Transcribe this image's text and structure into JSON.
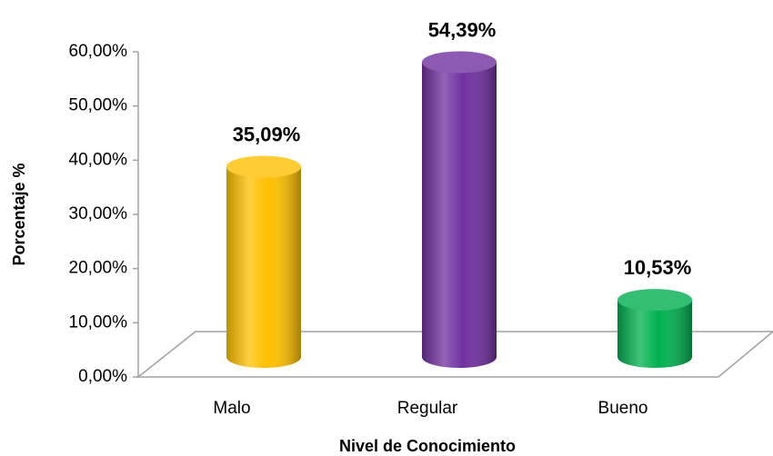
{
  "chart_data": {
    "type": "bar3d",
    "x_label": "Nivel de Conocimiento",
    "y_label": "Porcentaje %",
    "categories": [
      "Malo",
      "Regular",
      "Bueno"
    ],
    "values": [
      35.09,
      54.39,
      10.53
    ],
    "value_labels": [
      "35,09%",
      "54,39%",
      "10,53%"
    ],
    "colors": [
      "#ffc000",
      "#7030a0",
      "#00b050"
    ],
    "ylim": [
      0,
      60
    ],
    "yticks": [
      {
        "value": 0,
        "label": "0,00%"
      },
      {
        "value": 10,
        "label": "10,00%"
      },
      {
        "value": 20,
        "label": "20,00%"
      },
      {
        "value": 30,
        "label": "30,00%"
      },
      {
        "value": 40,
        "label": "40,00%"
      },
      {
        "value": 50,
        "label": "50,00%"
      },
      {
        "value": 60,
        "label": "60,00%"
      }
    ]
  }
}
